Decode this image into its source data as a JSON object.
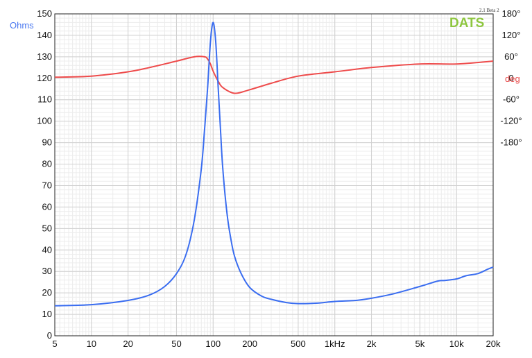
{
  "chart_data": {
    "type": "line",
    "brand": "DATS",
    "version": "2.1 Beta 2",
    "x_scale": "log",
    "xlim": [
      5,
      20000
    ],
    "x_ticks": [
      5,
      10,
      20,
      50,
      100,
      200,
      500,
      1000,
      2000,
      5000,
      10000,
      20000
    ],
    "x_tick_labels": [
      "5",
      "10",
      "20",
      "50",
      "100",
      "200",
      "500",
      "1kHz",
      "2k",
      "5k",
      "10k",
      "20k"
    ],
    "ylabel": "Ohms",
    "ylim": [
      0,
      150
    ],
    "y_ticks": [
      0,
      10,
      20,
      30,
      40,
      50,
      60,
      70,
      80,
      90,
      100,
      110,
      120,
      130,
      140,
      150
    ],
    "y_tick_labels": [
      "0",
      "10",
      "20",
      "30",
      "40",
      "50",
      "60",
      "70",
      "80",
      "90",
      "100",
      "110",
      "120",
      "130",
      "140",
      "150"
    ],
    "y2label": "deg",
    "y2_ticks": [
      180,
      120,
      60,
      0,
      -60,
      -120,
      -180
    ],
    "y2_tick_labels": [
      "180°",
      "120°",
      "60°",
      "0",
      "-60°",
      "-120°",
      "-180°"
    ],
    "y2_tick_positions_on_ohms": [
      150,
      140,
      130,
      120,
      110,
      100,
      90
    ],
    "grid": true,
    "colors": {
      "impedance": "#3a6df0",
      "phase": "#ee4b4b",
      "grid": "#d0d0d0",
      "minor_grid": "#ececec"
    },
    "series": [
      {
        "key": "impedance",
        "axis": "left",
        "x": [
          5,
          10,
          20,
          30,
          40,
          50,
          60,
          70,
          80,
          85,
          90,
          95,
          100,
          105,
          110,
          115,
          120,
          130,
          140,
          150,
          170,
          200,
          250,
          300,
          400,
          500,
          700,
          1000,
          1500,
          2000,
          3000,
          5000,
          7000,
          8000,
          10000,
          12000,
          15000,
          18000,
          20000
        ],
        "y": [
          14,
          14.5,
          16.5,
          19,
          23,
          29,
          38,
          54,
          78,
          96,
          115,
          137,
          146,
          137,
          116,
          96,
          78,
          57,
          45,
          37,
          29,
          22.5,
          18.5,
          17,
          15.5,
          15,
          15.2,
          16,
          16.5,
          17.5,
          19.5,
          23,
          25.5,
          25.8,
          26.5,
          28,
          29,
          31,
          32
        ]
      },
      {
        "key": "phase",
        "axis": "right",
        "x": [
          5,
          10,
          20,
          30,
          50,
          70,
          85,
          90,
          95,
          100,
          110,
          120,
          150,
          200,
          300,
          500,
          1000,
          2000,
          5000,
          10000,
          20000
        ],
        "y": [
          3,
          6,
          18,
          30,
          48,
          60,
          60,
          54,
          40,
          20,
          -8,
          -26,
          -42,
          -32,
          -14,
          6,
          18,
          30,
          40,
          40,
          48
        ]
      }
    ]
  }
}
